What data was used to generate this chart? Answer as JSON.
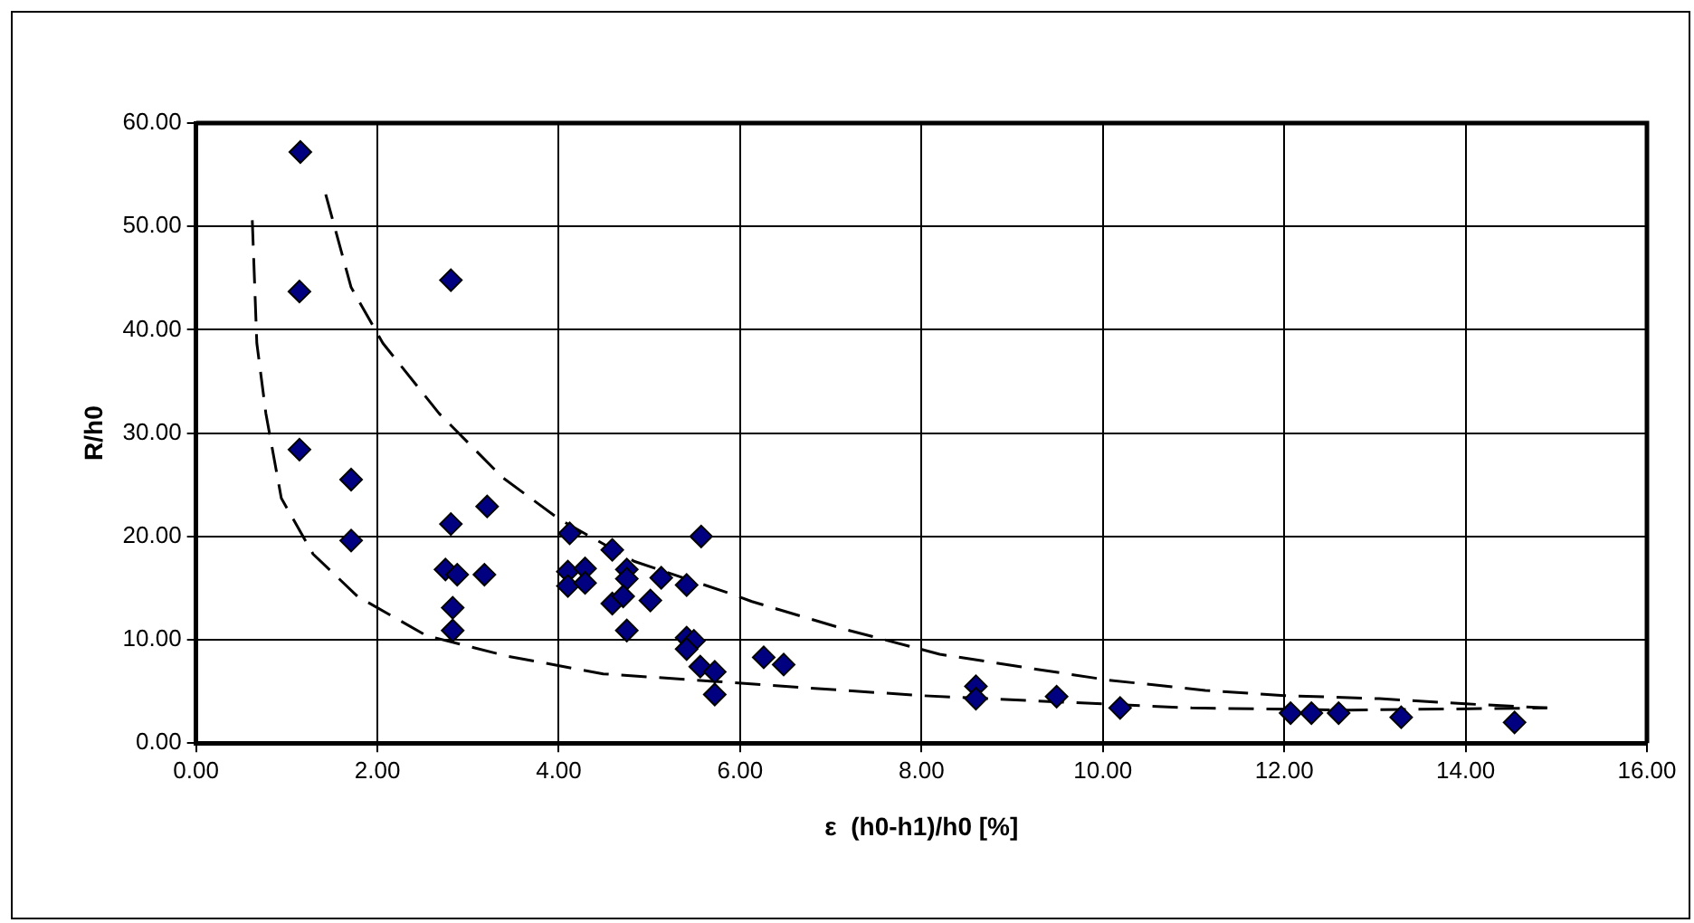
{
  "chart_data": {
    "type": "scatter",
    "xlabel": "ε  (h0-h1)/h0 [%]",
    "ylabel": "R/h0",
    "xlim": [
      0,
      16
    ],
    "xticks": [
      {
        "value": 0,
        "label": "0.00"
      },
      {
        "value": 2,
        "label": "2.00"
      },
      {
        "value": 4,
        "label": "4.00"
      },
      {
        "value": 6,
        "label": "6.00"
      },
      {
        "value": 8,
        "label": "8.00"
      },
      {
        "value": 10,
        "label": "10.00"
      },
      {
        "value": 12,
        "label": "12.00"
      },
      {
        "value": 14,
        "label": "14.00"
      },
      {
        "value": 16,
        "label": "16.00"
      }
    ],
    "ylim": [
      0,
      60
    ],
    "yticks": [
      {
        "value": 0,
        "label": "0.00"
      },
      {
        "value": 10,
        "label": "10.00"
      },
      {
        "value": 20,
        "label": "20.00"
      },
      {
        "value": 30,
        "label": "30.00"
      },
      {
        "value": 40,
        "label": "40.00"
      },
      {
        "value": 50,
        "label": "50.00"
      },
      {
        "value": 60,
        "label": "60.00"
      }
    ],
    "grid": true,
    "legend": false,
    "marker": "diamond",
    "series": [
      {
        "color": "#000080",
        "x": [
          1.15,
          1.14,
          1.14,
          1.71,
          1.71,
          2.81,
          2.81,
          2.75,
          2.88,
          2.83,
          2.83,
          3.21,
          3.18,
          4.12,
          4.1,
          4.1,
          4.29,
          4.29,
          4.59,
          4.75,
          4.75,
          4.59,
          4.71,
          4.75,
          5.01,
          5.13,
          5.41,
          5.57,
          5.41,
          5.49,
          5.41,
          5.56,
          5.72,
          5.72,
          6.26,
          6.48,
          8.6,
          8.6,
          9.49,
          10.19,
          12.07,
          12.3,
          12.6,
          13.29,
          14.54
        ],
        "values": [
          57.2,
          43.7,
          28.4,
          25.5,
          19.6,
          44.8,
          21.2,
          16.8,
          16.3,
          13.1,
          10.9,
          22.9,
          16.3,
          20.3,
          16.6,
          15.2,
          16.9,
          15.5,
          18.7,
          16.8,
          15.9,
          13.5,
          14.2,
          10.9,
          13.8,
          16.0,
          15.3,
          20.0,
          10.2,
          9.9,
          9.1,
          7.4,
          6.9,
          4.7,
          8.3,
          7.6,
          5.5,
          4.3,
          4.5,
          3.4,
          2.9,
          2.9,
          2.9,
          2.5,
          2.0
        ]
      },
      {
        "type": "line",
        "color": "#000000",
        "line_style": "dashed",
        "marker": "none",
        "x": [
          0.62,
          0.67,
          0.77,
          0.94,
          1.29,
          1.78,
          2.54,
          3.44,
          4.49,
          5.67,
          6.82,
          7.99,
          9.23,
          10.98,
          12.7,
          14.9
        ],
        "values": [
          50.6,
          38.7,
          31.9,
          23.7,
          18.3,
          14.2,
          10.4,
          8.4,
          6.7,
          6.0,
          5.3,
          4.6,
          4.1,
          3.4,
          3.2,
          3.4
        ]
      },
      {
        "type": "line",
        "color": "#000000",
        "line_style": "dashed",
        "marker": "none",
        "x": [
          1.43,
          1.71,
          2.06,
          2.68,
          3.38,
          4.0,
          4.83,
          5.88,
          6.13,
          7.16,
          8.2,
          9.23,
          10.06,
          11.13,
          12.0,
          13.05,
          14.0,
          14.9
        ],
        "values": [
          53.1,
          44.1,
          38.7,
          31.9,
          25.7,
          21.7,
          17.6,
          14.5,
          13.7,
          11.0,
          8.6,
          7.2,
          6.1,
          5.1,
          4.6,
          4.3,
          3.8,
          3.4
        ]
      }
    ]
  }
}
